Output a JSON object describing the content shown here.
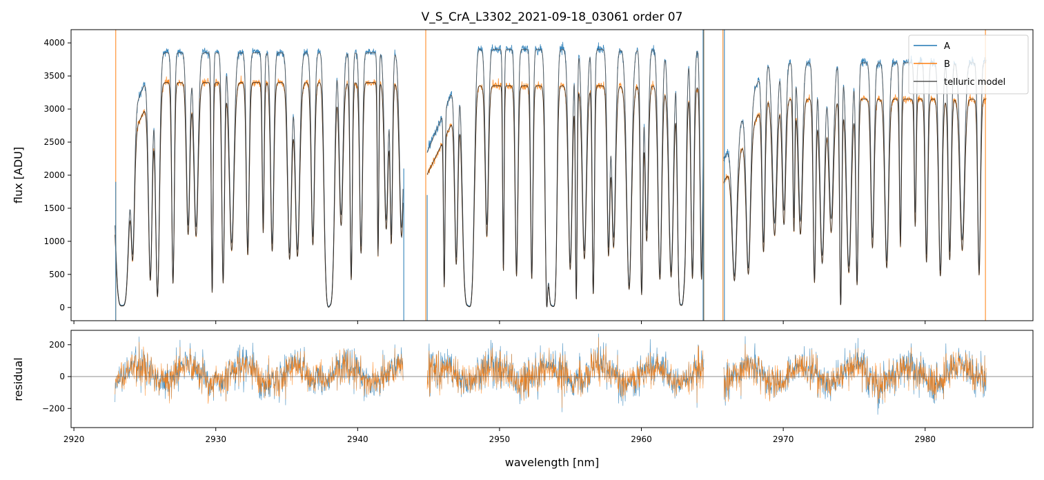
{
  "chart_data": {
    "type": "line",
    "title": "V_S_CrA_L3302_2021-09-18_03061  order 07",
    "xlabel": "wavelength [nm]",
    "panels": [
      {
        "name": "spectrum",
        "ylabel": "flux [ADU]",
        "xlim": [
          2919.8,
          2987.6
        ],
        "ylim": [
          -200,
          4200
        ],
        "yticks": [
          "0",
          "500",
          "1000",
          "1500",
          "2000",
          "2500",
          "3000",
          "3500",
          "4000"
        ],
        "ytick_values": [
          0,
          500,
          1000,
          1500,
          2000,
          2500,
          3000,
          3500,
          4000
        ],
        "segments": [
          {
            "range": [
              2922.9,
              2943.2
            ],
            "continuum_A": 3850,
            "continuum_B": 3400
          },
          {
            "range": [
              2944.9,
              2964.4
            ],
            "continuum_A": 3900,
            "continuum_B": 3350
          },
          {
            "range": [
              2965.8,
              2984.3
            ],
            "continuum_A": 3700,
            "continuum_B": 3150
          }
        ],
        "series": [
          {
            "name": "A",
            "color": "#1f77b4"
          },
          {
            "name": "B",
            "color": "#ff7f0e"
          },
          {
            "name": "telluric model",
            "color": "#555555"
          }
        ],
        "legend": {
          "location": "upper-right",
          "entries": [
            "A",
            "B",
            "telluric model"
          ]
        }
      },
      {
        "name": "residual",
        "ylabel": "residual",
        "xlim": [
          2919.8,
          2987.6
        ],
        "ylim": [
          -320,
          290
        ],
        "yticks": [
          "−200",
          "0",
          "200"
        ],
        "ytick_values": [
          -200,
          0,
          200
        ],
        "zero_line": true
      }
    ],
    "xticks": [
      "2920",
      "2930",
      "2940",
      "2950",
      "2960",
      "2970",
      "2980"
    ],
    "xtick_values": [
      2920,
      2930,
      2940,
      2950,
      2960,
      2970,
      2980
    ]
  }
}
